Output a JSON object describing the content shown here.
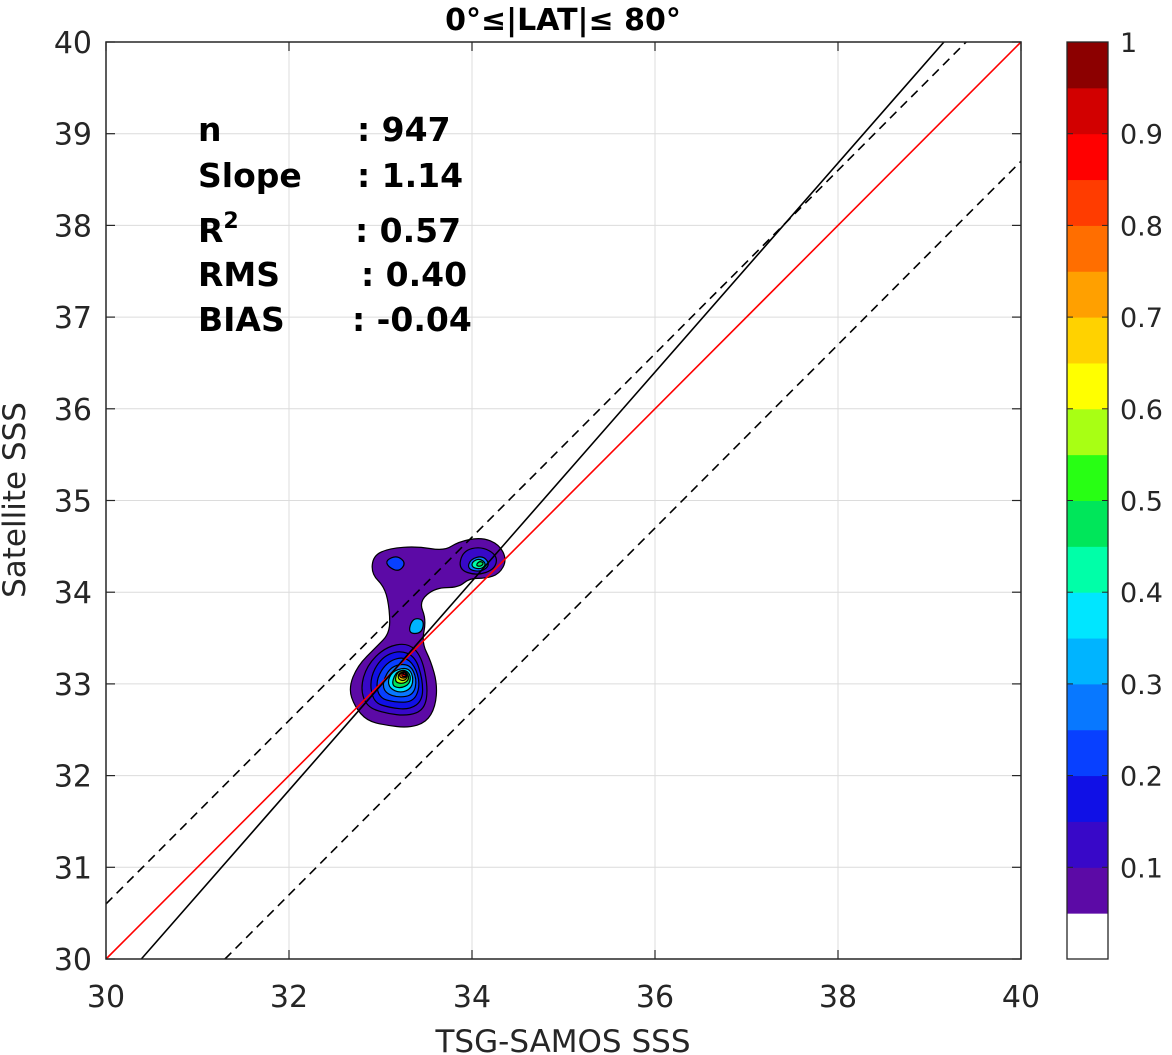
{
  "chart_data": {
    "type": "contour",
    "title": "0°≤|LAT|≤ 80°",
    "xlabel": "TSG-SAMOS SSS",
    "ylabel": "Satellite SSS",
    "xlim": [
      30,
      40
    ],
    "ylim": [
      30,
      40
    ],
    "xticks": [
      "30",
      "32",
      "34",
      "36",
      "38",
      "40"
    ],
    "yticks": [
      "30",
      "31",
      "32",
      "33",
      "34",
      "35",
      "36",
      "37",
      "38",
      "39",
      "40"
    ],
    "grid": true,
    "stats": [
      {
        "label": "n",
        "value": ": 947"
      },
      {
        "label": "Slope",
        "value": ": 1.14"
      },
      {
        "label": "R",
        "sup": "2",
        "value": ": 0.57"
      },
      {
        "label": "RMS",
        "value": ": 0.40"
      },
      {
        "label": "BIAS",
        "value": ": -0.04"
      }
    ],
    "lines": [
      {
        "name": "one-to-one",
        "color": "#ff0000",
        "style": "solid",
        "slope": 1.0,
        "intercept": 0.0
      },
      {
        "name": "regression-fit",
        "color": "#000000",
        "style": "solid",
        "slope": 1.14,
        "intercept": -4.64
      },
      {
        "name": "upper-bound",
        "color": "#000000",
        "style": "dashed",
        "slope": 1.0,
        "intercept": 0.6
      },
      {
        "name": "lower-bound",
        "color": "#000000",
        "style": "dashed",
        "slope": 1.0,
        "intercept": -1.3
      }
    ],
    "density_peaks": [
      {
        "x": 33.28,
        "y": 33.12,
        "value": 0.95
      },
      {
        "x": 34.08,
        "y": 34.3,
        "value": 0.5
      },
      {
        "x": 33.15,
        "y": 34.32,
        "value": 0.25
      },
      {
        "x": 33.42,
        "y": 33.65,
        "value": 0.3
      }
    ],
    "contours": [
      {
        "level": 0.05,
        "points": [
          [
            32.72,
            32.75
          ],
          [
            32.85,
            32.6
          ],
          [
            33.05,
            32.55
          ],
          [
            33.3,
            32.52
          ],
          [
            33.5,
            32.58
          ],
          [
            33.6,
            32.75
          ],
          [
            33.62,
            33.0
          ],
          [
            33.55,
            33.25
          ],
          [
            33.45,
            33.45
          ],
          [
            33.5,
            33.7
          ],
          [
            33.42,
            33.9
          ],
          [
            33.6,
            34.05
          ],
          [
            33.85,
            34.05
          ],
          [
            33.97,
            34.15
          ],
          [
            34.15,
            34.15
          ],
          [
            34.3,
            34.2
          ],
          [
            34.38,
            34.35
          ],
          [
            34.3,
            34.52
          ],
          [
            34.1,
            34.6
          ],
          [
            33.85,
            34.55
          ],
          [
            33.7,
            34.45
          ],
          [
            33.4,
            34.5
          ],
          [
            33.1,
            34.48
          ],
          [
            32.92,
            34.4
          ],
          [
            32.9,
            34.2
          ],
          [
            33.05,
            34.05
          ],
          [
            33.1,
            33.8
          ],
          [
            33.1,
            33.55
          ],
          [
            32.95,
            33.4
          ],
          [
            32.75,
            33.2
          ],
          [
            32.65,
            32.95
          ]
        ]
      },
      {
        "level": 0.1,
        "points": [
          [
            32.85,
            32.75
          ],
          [
            33.05,
            32.68
          ],
          [
            33.3,
            32.65
          ],
          [
            33.48,
            32.72
          ],
          [
            33.52,
            32.95
          ],
          [
            33.45,
            33.3
          ],
          [
            33.3,
            33.45
          ],
          [
            33.05,
            33.4
          ],
          [
            32.85,
            33.2
          ],
          [
            32.78,
            32.95
          ]
        ]
      },
      {
        "level": 0.1,
        "points": [
          [
            33.85,
            34.25
          ],
          [
            34.05,
            34.18
          ],
          [
            34.25,
            34.25
          ],
          [
            34.28,
            34.4
          ],
          [
            34.1,
            34.5
          ],
          [
            33.9,
            34.45
          ]
        ]
      },
      {
        "level": 0.15,
        "points": [
          [
            32.92,
            32.8
          ],
          [
            33.1,
            32.74
          ],
          [
            33.32,
            32.72
          ],
          [
            33.46,
            32.82
          ],
          [
            33.46,
            33.05
          ],
          [
            33.38,
            33.3
          ],
          [
            33.2,
            33.37
          ],
          [
            33.0,
            33.28
          ],
          [
            32.88,
            33.05
          ]
        ]
      },
      {
        "level": 0.2,
        "points": [
          [
            32.98,
            32.85
          ],
          [
            33.15,
            32.8
          ],
          [
            33.35,
            32.8
          ],
          [
            33.43,
            32.95
          ],
          [
            33.4,
            33.15
          ],
          [
            33.28,
            33.3
          ],
          [
            33.08,
            33.25
          ],
          [
            32.95,
            33.05
          ]
        ]
      },
      {
        "level": 0.25,
        "points": [
          [
            33.05,
            32.9
          ],
          [
            33.2,
            32.85
          ],
          [
            33.36,
            32.88
          ],
          [
            33.4,
            33.05
          ],
          [
            33.32,
            33.22
          ],
          [
            33.12,
            33.2
          ],
          [
            33.02,
            33.02
          ]
        ]
      },
      {
        "level": 0.3,
        "points": [
          [
            33.3,
            33.55
          ],
          [
            33.45,
            33.55
          ],
          [
            33.48,
            33.7
          ],
          [
            33.35,
            33.72
          ]
        ]
      },
      {
        "level": 0.2,
        "points": [
          [
            33.08,
            34.28
          ],
          [
            33.2,
            34.22
          ],
          [
            33.28,
            34.32
          ],
          [
            33.18,
            34.4
          ],
          [
            33.06,
            34.35
          ]
        ]
      },
      {
        "level": 0.25,
        "points": [
          [
            33.95,
            34.25
          ],
          [
            34.1,
            34.22
          ],
          [
            34.2,
            34.3
          ],
          [
            34.12,
            34.4
          ],
          [
            33.98,
            34.36
          ]
        ]
      },
      {
        "level": 0.4,
        "points": [
          [
            34.0,
            34.27
          ],
          [
            34.1,
            34.25
          ],
          [
            34.16,
            34.31
          ],
          [
            34.08,
            34.37
          ],
          [
            34.0,
            34.33
          ]
        ]
      },
      {
        "level": 0.45,
        "points": [
          [
            34.04,
            34.29
          ],
          [
            34.1,
            34.28
          ],
          [
            34.13,
            34.32
          ],
          [
            34.08,
            34.34
          ]
        ]
      },
      {
        "level": 0.35,
        "points": [
          [
            33.1,
            32.95
          ],
          [
            33.22,
            32.9
          ],
          [
            33.34,
            32.95
          ],
          [
            33.36,
            33.08
          ],
          [
            33.3,
            33.18
          ],
          [
            33.15,
            33.15
          ],
          [
            33.08,
            33.05
          ]
        ]
      },
      {
        "level": 0.45,
        "points": [
          [
            33.12,
            32.98
          ],
          [
            33.22,
            32.95
          ],
          [
            33.32,
            33.0
          ],
          [
            33.33,
            33.1
          ],
          [
            33.26,
            33.16
          ],
          [
            33.16,
            33.12
          ]
        ]
      },
      {
        "level": 0.55,
        "points": [
          [
            33.16,
            33.02
          ],
          [
            33.24,
            33.0
          ],
          [
            33.31,
            33.04
          ],
          [
            33.3,
            33.12
          ],
          [
            33.22,
            33.15
          ],
          [
            33.17,
            33.1
          ]
        ]
      },
      {
        "level": 0.65,
        "points": [
          [
            33.19,
            33.05
          ],
          [
            33.26,
            33.03
          ],
          [
            33.3,
            33.08
          ],
          [
            33.27,
            33.13
          ],
          [
            33.2,
            33.12
          ]
        ]
      },
      {
        "level": 0.75,
        "points": [
          [
            33.21,
            33.07
          ],
          [
            33.27,
            33.06
          ],
          [
            33.29,
            33.1
          ],
          [
            33.25,
            33.13
          ],
          [
            33.21,
            33.11
          ]
        ]
      },
      {
        "level": 0.85,
        "points": [
          [
            33.23,
            33.08
          ],
          [
            33.28,
            33.08
          ],
          [
            33.28,
            33.12
          ],
          [
            33.24,
            33.13
          ]
        ]
      },
      {
        "level": 0.95,
        "points": [
          [
            33.25,
            33.1
          ],
          [
            33.28,
            33.1
          ],
          [
            33.27,
            33.13
          ],
          [
            33.25,
            33.12
          ]
        ]
      }
    ],
    "colorbar": {
      "ticks": [
        "0.1",
        "0.2",
        "0.3",
        "0.4",
        "0.5",
        "0.6",
        "0.7",
        "0.8",
        "0.9",
        "1"
      ],
      "range": [
        0,
        1
      ],
      "colors": [
        "#ffffff",
        "#5c0aa6",
        "#3808c8",
        "#1010e6",
        "#0840ff",
        "#0878ff",
        "#00b4ff",
        "#00e6ff",
        "#00ffa8",
        "#00e65a",
        "#28ff14",
        "#a8ff14",
        "#ffff00",
        "#ffd200",
        "#ffa000",
        "#ff6e00",
        "#ff3c00",
        "#ff0000",
        "#d20000",
        "#8c0000"
      ]
    }
  }
}
